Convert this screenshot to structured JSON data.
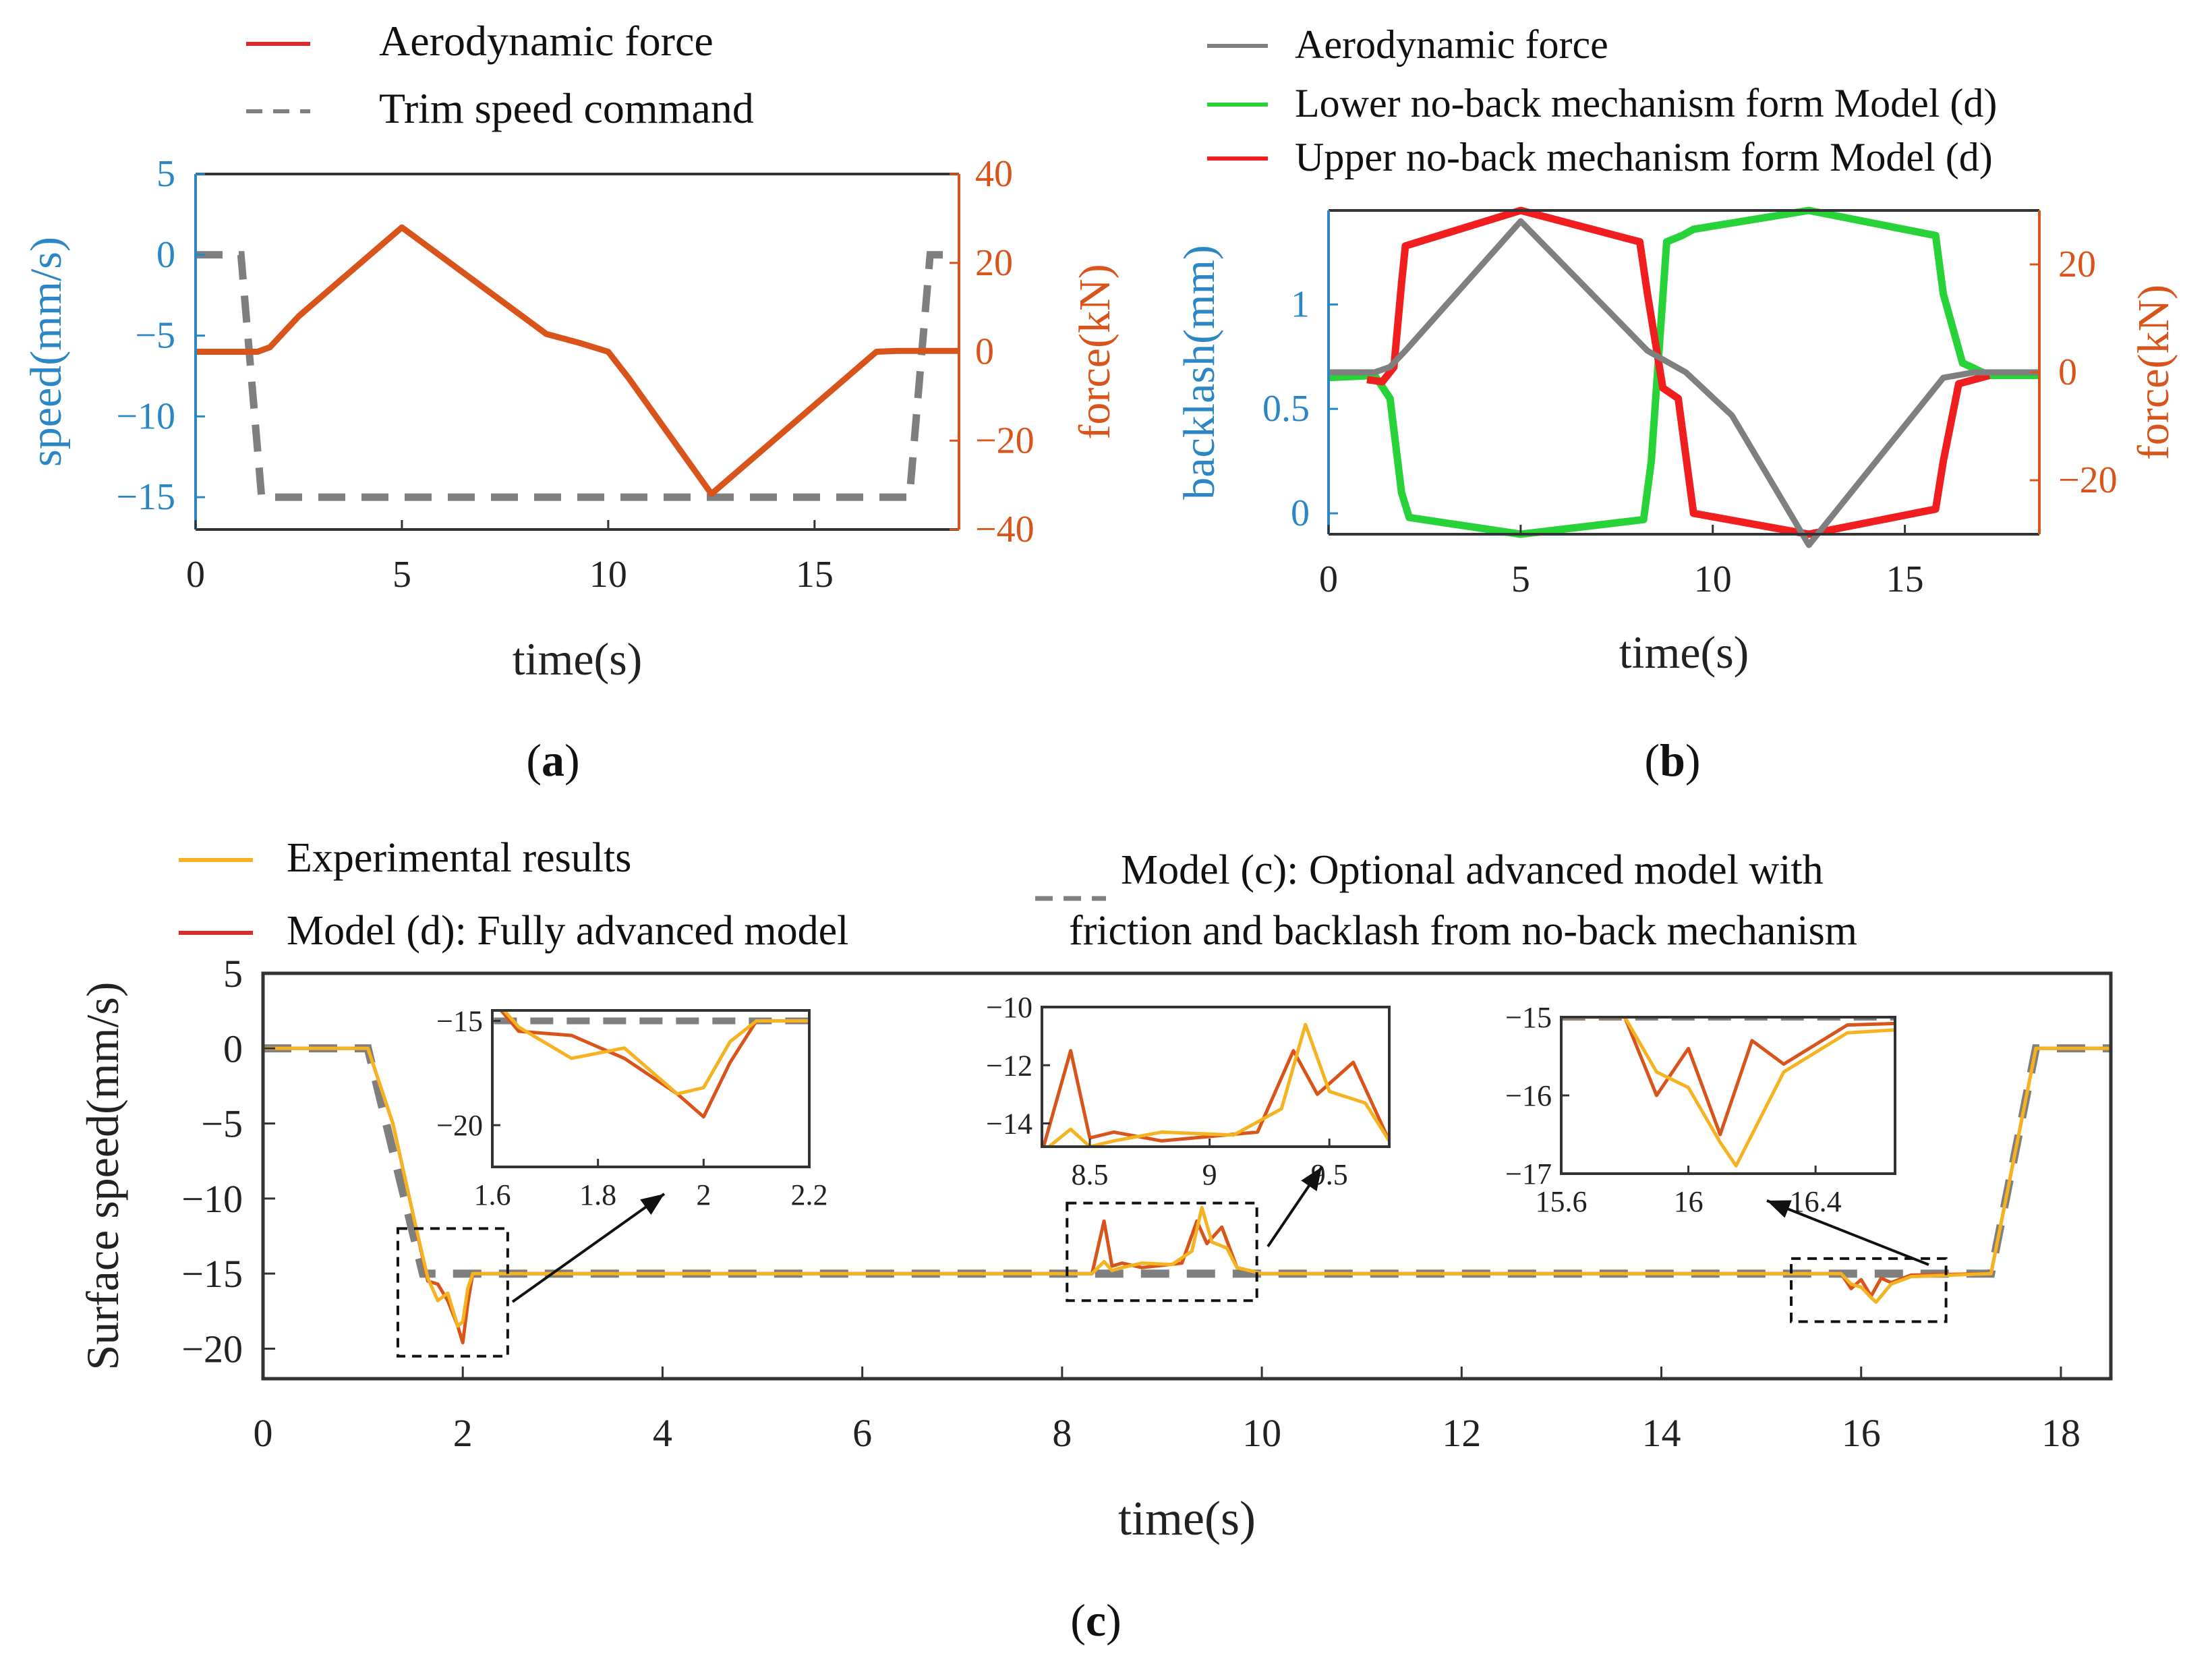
{
  "colors": {
    "blue": "#2b86c5",
    "orange": "#d9541a",
    "red": "#d92b2b",
    "gray": "#7f7f7f",
    "green": "#28d33a",
    "brightRed": "#f01e1e",
    "yellow": "#f5b321",
    "dark": "#333333"
  },
  "chart_data": [
    {
      "id": "a",
      "type": "line",
      "panel_label": "(a)",
      "panel_label_parts": {
        "open": "(",
        "letter": "a",
        "close": ")"
      },
      "xlabel": "time(s)",
      "ylabel_left": "speed(mm/s)",
      "ylabel_right": "force(kN)",
      "xlim": [
        0,
        18.5
      ],
      "ylim_left": [
        -17,
        5
      ],
      "ylim_right": [
        -40,
        40
      ],
      "xticks": [
        0,
        5,
        10,
        15
      ],
      "yticks_left": [
        5,
        0,
        -5,
        -10,
        -15
      ],
      "yticks_right": [
        40,
        20,
        0,
        -20,
        -40
      ],
      "ytick_labels_right": [
        "40",
        "20",
        "0",
        "−20",
        "−40"
      ],
      "legend": [
        "Aerodynamic force",
        "Trim speed command"
      ],
      "series": [
        {
          "name": "Aerodynamic force",
          "axis": "right",
          "style": "solid",
          "x": [
            0,
            1.5,
            1.8,
            2.2,
            2.5,
            5,
            8.5,
            9.3,
            10,
            10.5,
            12.5,
            16.5,
            17,
            18.5
          ],
          "y": [
            0,
            0,
            1,
            5,
            8,
            28,
            4,
            2,
            0,
            -6,
            -32,
            0,
            0.2,
            0.2
          ]
        },
        {
          "name": "Trim speed command",
          "axis": "left",
          "style": "dashed",
          "x": [
            0,
            1.1,
            1.6,
            17.3,
            17.8,
            18.5
          ],
          "y": [
            0,
            0,
            -15,
            -15,
            0,
            0
          ]
        }
      ]
    },
    {
      "id": "b",
      "type": "line",
      "panel_label": "(b)",
      "panel_label_parts": {
        "open": "(",
        "letter": "b",
        "close": ")"
      },
      "xlabel": "time(s)",
      "ylabel_left": "backlash(mm)",
      "ylabel_right": "force(kN)",
      "xlim": [
        0,
        18.5
      ],
      "ylim_left": [
        -0.1,
        1.45
      ],
      "ylim_right": [
        -30,
        30
      ],
      "xticks": [
        0,
        5,
        10,
        15
      ],
      "yticks_left": [
        1,
        0.5,
        0
      ],
      "yticks_right": [
        20,
        0,
        -20
      ],
      "ytick_labels_right": [
        "20",
        "0",
        "−20"
      ],
      "legend": [
        "Aerodynamic force",
        "Lower no-back mechanism form Model (d)",
        "Upper no-back mechanism form Model (d)"
      ],
      "series": [
        {
          "name": "Aerodynamic force",
          "axis": "right",
          "style": "solid",
          "x": [
            0,
            1.2,
            1.6,
            2.0,
            5,
            8.3,
            9.3,
            10.5,
            12.5,
            16.0,
            16.8,
            18.5
          ],
          "y": [
            0,
            0,
            1,
            4,
            28,
            4,
            0,
            -8,
            -32,
            -1,
            0,
            0
          ]
        },
        {
          "name": "Lower no-back mechanism form Model (d)",
          "axis": "left",
          "style": "solid",
          "x": [
            0,
            1.2,
            1.6,
            1.9,
            2.1,
            5,
            8.2,
            8.4,
            8.8,
            9.2,
            9.5,
            12.5,
            15.8,
            16.0,
            16.5,
            17.2,
            18.5
          ],
          "y": [
            0.65,
            0.66,
            0.55,
            0.1,
            -0.02,
            -0.1,
            -0.03,
            0.25,
            1.3,
            1.33,
            1.36,
            1.45,
            1.33,
            1.05,
            0.72,
            0.66,
            0.66
          ]
        },
        {
          "name": "Upper no-back mechanism form Model (d)",
          "axis": "left",
          "style": "solid",
          "x": [
            1.0,
            1.4,
            1.7,
            1.9,
            2.0,
            5,
            8.1,
            8.3,
            8.7,
            9.1,
            9.5,
            12.5,
            15.8,
            16.0,
            16.4,
            17.2
          ],
          "y": [
            0.64,
            0.63,
            0.7,
            1.1,
            1.28,
            1.45,
            1.3,
            1.05,
            0.6,
            0.55,
            0.0,
            -0.1,
            0.02,
            0.25,
            0.62,
            0.66
          ]
        }
      ]
    },
    {
      "id": "c",
      "type": "line",
      "panel_label": "(c)",
      "panel_label_parts": {
        "open": "(",
        "letter": "c",
        "close": ")"
      },
      "xlabel": "time(s)",
      "ylabel": "Surface speed(mm/s)",
      "xlim": [
        0,
        18.5
      ],
      "ylim": [
        -22,
        5
      ],
      "xticks": [
        0,
        2,
        4,
        6,
        8,
        10,
        12,
        14,
        16,
        18
      ],
      "yticks": [
        5,
        0,
        -5,
        -10,
        -15,
        -20
      ],
      "ytick_labels": [
        "5",
        "0",
        "−5",
        "−10",
        "−15",
        "−20"
      ],
      "legend": [
        "Experimental results",
        "Model (d): Fully advanced model",
        "Model (c): Optional advanced model with",
        "friction and backlash from no-back mechanism"
      ],
      "series": [
        {
          "name": "Model (c): Optional advanced model with friction and backlash from no-back mechanism",
          "style": "dashed",
          "x": [
            0,
            1.05,
            1.6,
            17.3,
            17.75,
            18.5
          ],
          "y": [
            0,
            0,
            -15,
            -15,
            0,
            0
          ]
        },
        {
          "name": "Model (d): Fully advanced model",
          "style": "solid",
          "x": [
            0,
            1.05,
            1.3,
            1.5,
            1.65,
            1.75,
            1.85,
            1.95,
            2.0,
            2.05,
            2.1,
            2.3,
            8.3,
            8.42,
            8.5,
            8.6,
            8.8,
            9.2,
            9.35,
            9.45,
            9.6,
            9.75,
            10,
            15.8,
            15.9,
            16.0,
            16.1,
            16.2,
            16.3,
            16.5,
            17.3,
            17.75,
            18.5
          ],
          "y": [
            0,
            0,
            -5,
            -11,
            -15.5,
            -15.7,
            -16.8,
            -18.5,
            -19.6,
            -17,
            -15,
            -15,
            -15,
            -11.5,
            -14.5,
            -14.3,
            -14.6,
            -14.3,
            -11.5,
            -13,
            -11.9,
            -14.6,
            -15,
            -15,
            -16,
            -15.4,
            -16.5,
            -15.3,
            -15.6,
            -15.1,
            -15,
            0,
            0
          ]
        },
        {
          "name": "Experimental results",
          "style": "solid",
          "x": [
            0,
            1.05,
            1.3,
            1.5,
            1.65,
            1.75,
            1.85,
            1.95,
            2.0,
            2.05,
            2.1,
            2.3,
            8.3,
            8.42,
            8.5,
            8.6,
            8.8,
            9.1,
            9.3,
            9.4,
            9.5,
            9.65,
            9.75,
            10,
            15.8,
            15.9,
            16.0,
            16.1,
            16.15,
            16.3,
            16.5,
            17.3,
            17.75,
            18.5
          ],
          "y": [
            0,
            0,
            -5,
            -11,
            -15.3,
            -16.8,
            -16.3,
            -18.5,
            -18.2,
            -16,
            -15,
            -15,
            -15,
            -14.2,
            -14.8,
            -14.6,
            -14.3,
            -14.4,
            -13.5,
            -10.6,
            -12.9,
            -13.3,
            -14.6,
            -15,
            -15,
            -15.7,
            -15.9,
            -16.6,
            -16.9,
            -15.7,
            -15.2,
            -15,
            0,
            0
          ]
        }
      ],
      "insets": [
        {
          "name": "inset-1",
          "xlim": [
            1.6,
            2.2
          ],
          "ylim": [
            -22,
            -14.5
          ],
          "xticks": [
            1.6,
            1.8,
            2,
            2.2
          ],
          "yticks": [
            -15,
            -20
          ],
          "ytick_labels": [
            "−15",
            "−20"
          ],
          "zoom_box": {
            "x": [
              1.35,
              2.45
            ],
            "y": [
              -20.5,
              -12
            ]
          }
        },
        {
          "name": "inset-2",
          "xlim": [
            8.3,
            9.75
          ],
          "ylim": [
            -14.8,
            -10
          ],
          "xticks": [
            8.5,
            9,
            9.5
          ],
          "yticks": [
            -10,
            -12,
            -14
          ],
          "ytick_labels": [
            "−10",
            "−12",
            "−14"
          ],
          "zoom_box": {
            "x": [
              8.05,
              9.95
            ],
            "y": [
              -16.8,
              -10.3
            ]
          }
        },
        {
          "name": "inset-3",
          "xlim": [
            15.6,
            16.65
          ],
          "ylim": [
            -17,
            -15
          ],
          "xticks": [
            15.6,
            16,
            16.4
          ],
          "yticks": [
            -15,
            -16,
            -17
          ],
          "ytick_labels": [
            "−15",
            "−16",
            "−17"
          ],
          "zoom_box": {
            "x": [
              15.3,
              16.85
            ],
            "y": [
              -18.2,
              -14
            ]
          }
        }
      ]
    }
  ]
}
